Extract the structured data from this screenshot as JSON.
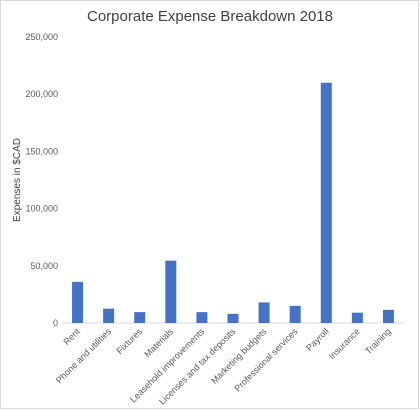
{
  "chart_data": {
    "type": "bar",
    "title": "Corporate Expense Breakdown 2018",
    "xlabel": "",
    "ylabel": "Expenses in $CAD",
    "ylim": [
      0,
      250000
    ],
    "yticks": [
      "0",
      "50,000",
      "100,000",
      "150,000",
      "200,000",
      "250,000"
    ],
    "categories": [
      "Rent",
      "Phone and utilities",
      "Fixtures",
      "Materials",
      "Leasehold improvements",
      "Licenses and tax deposits",
      "Marketing budgets",
      "Professional services",
      "Payroll",
      "Insurance",
      "Training"
    ],
    "values": [
      36000,
      12500,
      9500,
      54500,
      9500,
      8000,
      18000,
      15000,
      210000,
      9000,
      11500
    ],
    "grid": false,
    "legend": "none",
    "bar_color": "#4472c4"
  }
}
